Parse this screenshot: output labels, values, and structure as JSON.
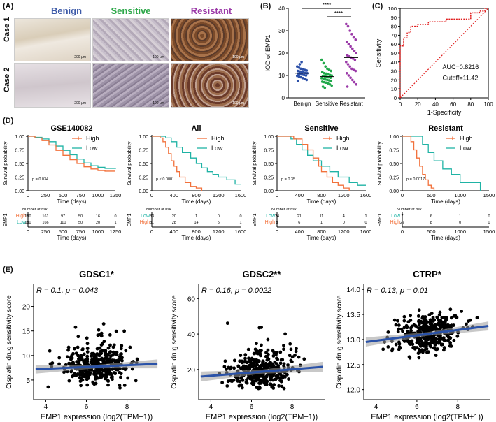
{
  "panel_labels": {
    "a": "(A)",
    "b": "(B)",
    "c": "(C)",
    "d": "(D)",
    "e": "(E)"
  },
  "histology": {
    "col_titles": [
      {
        "text": "Benign",
        "color": "#3d5aa8"
      },
      {
        "text": "Sensitive",
        "color": "#2ea84a"
      },
      {
        "text": "Resistant",
        "color": "#9b3aa8"
      }
    ],
    "row_titles": [
      "Case 1",
      "Case 2"
    ],
    "scale_bars": [
      [
        "200 μm",
        "100 μm",
        "100 μm"
      ],
      [
        "200 μm",
        "100 μm",
        "100 μm"
      ]
    ]
  },
  "colors": {
    "high": "#f2713b",
    "low": "#1fb3a5",
    "benign": "#2b4fa8",
    "sensitive": "#20a84a",
    "resistant": "#9b3aa8",
    "roc": "#e01c1c",
    "reg": "#2a52a8"
  },
  "chart_data": [
    {
      "id": "B",
      "type": "scatter",
      "ylabel": "IOD of EMP1",
      "ylim": [
        0,
        40
      ],
      "yticks": [
        "0",
        "10",
        "20",
        "30",
        "40"
      ],
      "categories": [
        "Benign",
        "Sensitive",
        "Resistant"
      ],
      "significance": [
        "****",
        "****"
      ],
      "groups": [
        {
          "name": "Benign",
          "median": 11,
          "values": [
            14,
            13.5,
            13,
            12.8,
            12.5,
            12.2,
            12,
            11.8,
            11.6,
            11.4,
            11.2,
            11,
            10.8,
            10.6,
            10.4,
            10.2,
            10,
            9.8,
            9.5,
            9.2,
            8.8,
            8.5,
            8,
            7.5,
            15,
            16
          ]
        },
        {
          "name": "Sensitive",
          "median": 9.5,
          "values": [
            17,
            15.5,
            14,
            13,
            12.5,
            12,
            11.5,
            11,
            10.8,
            10.5,
            10.2,
            10,
            9.8,
            9.6,
            9.4,
            9.2,
            9,
            8.8,
            8.5,
            8.2,
            8,
            7.8,
            7.5,
            7.2,
            7,
            6.8,
            6.5,
            6,
            5.5,
            5,
            4.5
          ]
        },
        {
          "name": "Resistant",
          "median": 18,
          "values": [
            33,
            32,
            30,
            28.5,
            27,
            26,
            25,
            24,
            23,
            22,
            21,
            20,
            19,
            18.5,
            18,
            17.5,
            17,
            16,
            15,
            14,
            13,
            12.5,
            12,
            11,
            10,
            9,
            8,
            7,
            6,
            5
          ]
        }
      ]
    },
    {
      "id": "C",
      "type": "line",
      "xlabel": "1-Specificity",
      "ylabel": "Sensitivity",
      "xticks": [
        "0",
        "20",
        "40",
        "60",
        "80",
        "100"
      ],
      "yticks": [
        "0",
        "10",
        "20",
        "30",
        "40",
        "50",
        "60",
        "70",
        "80",
        "90",
        "100"
      ],
      "auc_text": "AUC=0.8216",
      "cutoff_text": "Cutoff=11.42",
      "roc": [
        [
          0,
          0
        ],
        [
          0,
          58
        ],
        [
          4,
          58
        ],
        [
          4,
          67
        ],
        [
          8,
          67
        ],
        [
          8,
          73
        ],
        [
          12,
          73
        ],
        [
          12,
          80
        ],
        [
          20,
          80
        ],
        [
          20,
          82
        ],
        [
          32,
          82
        ],
        [
          32,
          85
        ],
        [
          52,
          85
        ],
        [
          52,
          88
        ],
        [
          80,
          88
        ],
        [
          80,
          95
        ],
        [
          90,
          95
        ],
        [
          90,
          97
        ],
        [
          96,
          97
        ],
        [
          96,
          100
        ],
        [
          100,
          100
        ]
      ]
    }
  ],
  "km_panels": [
    {
      "title": "GSE140082",
      "xmax": 1250,
      "xticks": [
        "0",
        "250",
        "500",
        "750",
        "1000",
        "1250"
      ],
      "yticks": [
        "0.00",
        "0.25",
        "0.50",
        "0.75",
        "1.00"
      ],
      "pval": "p = 0.034",
      "xlabel": "Time (days)",
      "ylabel": "Survival probability",
      "legend_high": "High",
      "legend_low": "Low",
      "high": [
        [
          0,
          1
        ],
        [
          100,
          0.97
        ],
        [
          200,
          0.92
        ],
        [
          300,
          0.84
        ],
        [
          400,
          0.74
        ],
        [
          500,
          0.65
        ],
        [
          600,
          0.57
        ],
        [
          700,
          0.5
        ],
        [
          800,
          0.44
        ],
        [
          900,
          0.4
        ],
        [
          1000,
          0.37
        ],
        [
          1100,
          0.36
        ],
        [
          1250,
          0.36
        ]
      ],
      "low": [
        [
          0,
          1
        ],
        [
          100,
          0.98
        ],
        [
          200,
          0.95
        ],
        [
          300,
          0.9
        ],
        [
          400,
          0.82
        ],
        [
          500,
          0.74
        ],
        [
          600,
          0.66
        ],
        [
          700,
          0.58
        ],
        [
          800,
          0.51
        ],
        [
          900,
          0.46
        ],
        [
          1000,
          0.43
        ],
        [
          1100,
          0.41
        ],
        [
          1250,
          0.4
        ]
      ],
      "risk_title": "Number at risk",
      "risk_high": [
        "190",
        "161",
        "97",
        "50",
        "16",
        "0"
      ],
      "risk_low": [
        "190",
        "166",
        "110",
        "50",
        "20",
        "1"
      ],
      "risk_order": [
        "high",
        "low"
      ]
    },
    {
      "title": "All",
      "xmax": 1600,
      "xticks": [
        "0",
        "400",
        "800",
        "1200",
        "1600"
      ],
      "yticks": [
        "0.00",
        "0.25",
        "0.50",
        "0.75",
        "1.00"
      ],
      "pval": "p < 0.0001",
      "xlabel": "Time (days)",
      "ylabel": "Survival probability",
      "legend_high": "High",
      "legend_low": "Low",
      "high": [
        [
          0,
          1
        ],
        [
          150,
          0.97
        ],
        [
          200,
          0.9
        ],
        [
          250,
          0.8
        ],
        [
          300,
          0.68
        ],
        [
          350,
          0.55
        ],
        [
          400,
          0.45
        ],
        [
          450,
          0.35
        ],
        [
          500,
          0.25
        ],
        [
          600,
          0.15
        ],
        [
          700,
          0.08
        ],
        [
          800,
          0.05
        ],
        [
          900,
          0
        ]
      ],
      "low": [
        [
          0,
          1
        ],
        [
          250,
          0.97
        ],
        [
          350,
          0.9
        ],
        [
          450,
          0.8
        ],
        [
          550,
          0.7
        ],
        [
          700,
          0.6
        ],
        [
          800,
          0.5
        ],
        [
          900,
          0.42
        ],
        [
          1000,
          0.35
        ],
        [
          1100,
          0.3
        ],
        [
          1200,
          0.25
        ],
        [
          1350,
          0.2
        ],
        [
          1500,
          0.12
        ],
        [
          1600,
          0.12
        ]
      ],
      "risk_title": "Number at risk",
      "risk_high": [
        "31",
        "28",
        "14",
        "5",
        "1"
      ],
      "risk_low": [
        "33",
        "20",
        "1",
        "0",
        "0"
      ],
      "risk_order": [
        "low",
        "high"
      ]
    },
    {
      "title": "Sensitive",
      "xmax": 1600,
      "xticks": [
        "0",
        "400",
        "800",
        "1200",
        "1600"
      ],
      "yticks": [
        "0.00",
        "0.25",
        "0.50",
        "0.75",
        "1.00"
      ],
      "pval": "p = 0.35",
      "xlabel": "Time (days)",
      "ylabel": "Survival probability",
      "legend_high": "High",
      "legend_low": "Low",
      "high": [
        [
          0,
          1
        ],
        [
          300,
          0.95
        ],
        [
          450,
          0.85
        ],
        [
          550,
          0.75
        ],
        [
          650,
          0.6
        ],
        [
          750,
          0.45
        ],
        [
          800,
          0.35
        ],
        [
          900,
          0.25
        ],
        [
          1000,
          0.15
        ],
        [
          1100,
          0.1
        ],
        [
          1200,
          0.05
        ],
        [
          1300,
          0
        ]
      ],
      "low": [
        [
          0,
          1
        ],
        [
          250,
          0.95
        ],
        [
          350,
          0.85
        ],
        [
          450,
          0.75
        ],
        [
          550,
          0.65
        ],
        [
          650,
          0.55
        ],
        [
          800,
          0.45
        ],
        [
          950,
          0.35
        ],
        [
          1100,
          0.25
        ],
        [
          1300,
          0.15
        ],
        [
          1450,
          0.1
        ],
        [
          1600,
          0.1
        ]
      ],
      "risk_title": "Number at risk",
      "risk_high": [
        "9",
        "6",
        "1",
        "0",
        "0"
      ],
      "risk_low": [
        "24",
        "21",
        "11",
        "4",
        "1"
      ],
      "risk_order": [
        "low",
        "high"
      ]
    },
    {
      "title": "Resistant",
      "xmax": 1500,
      "xticks": [
        "0",
        "500",
        "1000",
        "1500"
      ],
      "yticks": [
        "0.00",
        "0.25",
        "0.50",
        "0.75",
        "1.00"
      ],
      "pval": "p = 0.0017",
      "xlabel": "Time (days)",
      "ylabel": "Survival probability",
      "legend_high": "High",
      "legend_low": "Low",
      "high": [
        [
          0,
          1
        ],
        [
          150,
          0.9
        ],
        [
          200,
          0.75
        ],
        [
          250,
          0.6
        ],
        [
          300,
          0.45
        ],
        [
          350,
          0.3
        ],
        [
          400,
          0.2
        ],
        [
          450,
          0.1
        ],
        [
          500,
          0.05
        ],
        [
          550,
          0
        ]
      ],
      "low": [
        [
          0,
          1
        ],
        [
          350,
          0.85
        ],
        [
          450,
          0.7
        ],
        [
          550,
          0.55
        ],
        [
          700,
          0.4
        ],
        [
          850,
          0.3
        ],
        [
          1000,
          0.15
        ],
        [
          1100,
          0.15
        ],
        [
          1300,
          0.15
        ],
        [
          1350,
          0
        ]
      ],
      "risk_title": "Number at risk",
      "risk_high": [
        "27",
        "8",
        "0",
        "0"
      ],
      "risk_low": [
        "7",
        "6",
        "1",
        "0"
      ],
      "risk_order": [
        "low",
        "high"
      ]
    }
  ],
  "risk_axis_label": "EMP1",
  "scatter_panels": [
    {
      "title": "GDSC1*",
      "stat": "R = 0.1, p = 0.043",
      "xlabel": "EMP1 expression (log2(TPM+1))",
      "ylabel": "Cisplatin drug sensitivity score",
      "xlim": [
        3.4,
        9.6
      ],
      "ylim": [
        1,
        24.5
      ],
      "xticks": [
        4,
        6,
        8
      ],
      "yticks": [
        5,
        10,
        15,
        20
      ],
      "fit": [
        [
          3.5,
          7.2
        ],
        [
          9.5,
          8.3
        ]
      ],
      "band": 0.9,
      "seed": 11,
      "noise": 3.3
    },
    {
      "title": "GDSC2**",
      "stat": "R = 0.16, p = 0.0022",
      "xlabel": "EMP1 expression (log2(TPM+1))",
      "ylabel": "Cisplatin drug sensitivity score",
      "xlim": [
        3.4,
        9.6
      ],
      "ylim": [
        3,
        68
      ],
      "xticks": [
        4,
        6,
        8
      ],
      "yticks": [
        20,
        40,
        60
      ],
      "fit": [
        [
          3.5,
          16
        ],
        [
          9.5,
          21.5
        ]
      ],
      "band": 2.8,
      "seed": 23,
      "noise": 9
    },
    {
      "title": "CTRP*",
      "stat": "R = 0.13, p = 0.01",
      "xlabel": "EMP1 expression (log2(TPM+1))",
      "ylabel": "Cisplatin drug sensitivity score",
      "xlim": [
        3.4,
        9.6
      ],
      "ylim": [
        11.8,
        14.1
      ],
      "xticks": [
        4,
        6,
        8
      ],
      "yticks": [
        12.0,
        12.5,
        13.0,
        13.5,
        14.0
      ],
      "fit": [
        [
          3.5,
          12.95
        ],
        [
          9.5,
          13.27
        ]
      ],
      "band": 0.09,
      "seed": 37,
      "noise": 0.35
    }
  ]
}
